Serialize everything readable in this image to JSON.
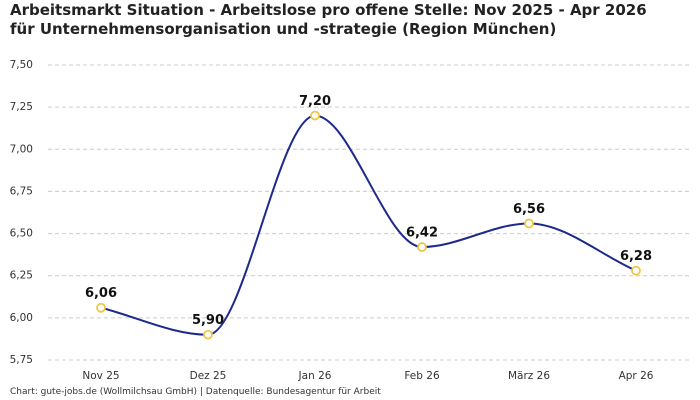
{
  "chart_data": {
    "type": "line",
    "title": "Arbeitsmarkt Situation - Arbeitslose pro offene Stelle: Nov 2025 - Apr 2026 für Unternehmensorganisation und -strategie (Region München)",
    "source": "Chart: gute-jobs.de (Wollmilchsau GmbH) | Datenquelle: Bundesagentur für Arbeit",
    "categories": [
      "Nov 25",
      "Dez 25",
      "Jan 26",
      "Feb 26",
      "März 26",
      "Apr 26"
    ],
    "values": [
      6.06,
      5.9,
      7.2,
      6.42,
      6.56,
      6.28
    ],
    "value_labels": [
      "6,06",
      "5,90",
      "7,20",
      "6,42",
      "6,56",
      "6,28"
    ],
    "color": "#1c2a8c",
    "marker_color": "#f2c744",
    "ylim": [
      5.75,
      7.5
    ],
    "yticks": [
      {
        "value": 5.75,
        "label": "5,75"
      },
      {
        "value": 6,
        "label": "6,00"
      },
      {
        "value": 6.25,
        "label": "6,25"
      },
      {
        "value": 6.5,
        "label": "6,50"
      },
      {
        "value": 6.75,
        "label": "6,75"
      },
      {
        "value": 7,
        "label": "7,00"
      },
      {
        "value": 7.25,
        "label": "7,25"
      },
      {
        "value": 7.5,
        "label": "7,50"
      }
    ],
    "grid": true
  }
}
